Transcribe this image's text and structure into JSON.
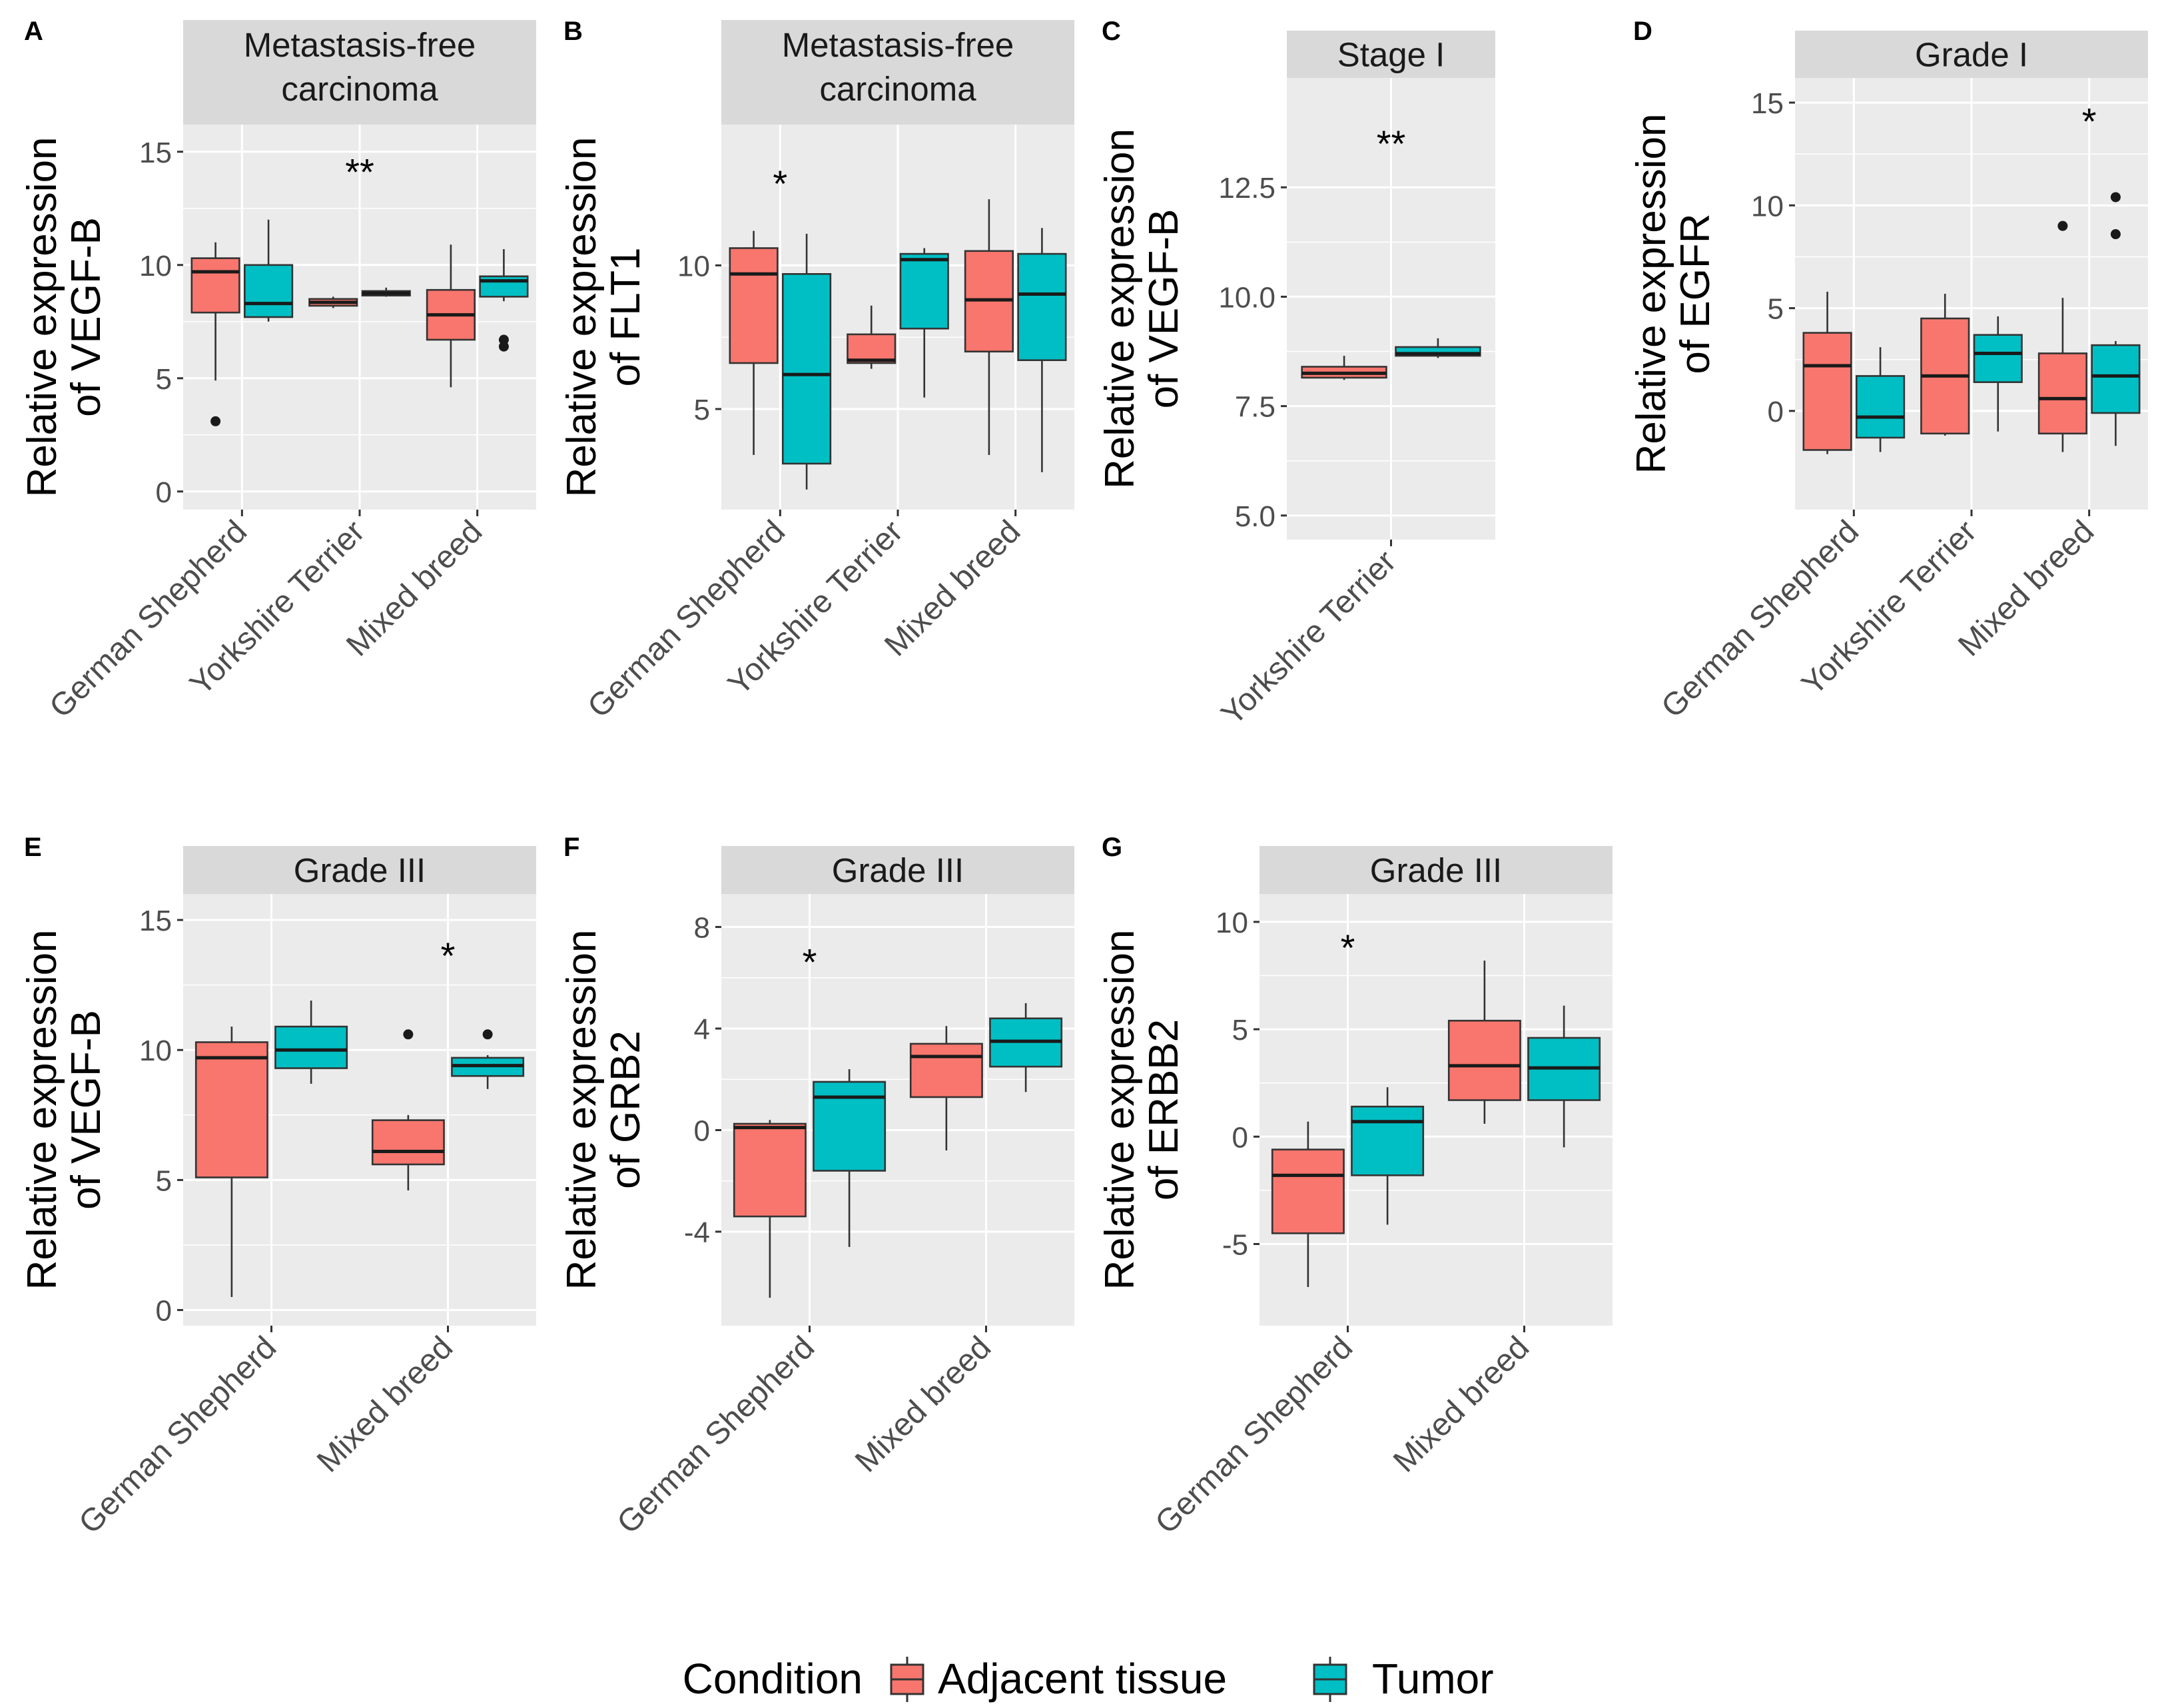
{
  "figure": {
    "legend": {
      "title": "Condition",
      "entries": [
        {
          "label": "Adjacent tissue",
          "color": "#F8766D"
        },
        {
          "label": "Tumor",
          "color": "#00BFC4"
        }
      ]
    },
    "colors": {
      "adjacent": "#F8766D",
      "tumor": "#00BFC4",
      "panel_bg": "#EBEBEB",
      "strip_bg": "#D9D9D9",
      "grid": "#FFFFFF",
      "tick_text": "#4D4D4D"
    }
  },
  "chart_data": [
    {
      "panel": "A",
      "type": "boxplot",
      "strip": [
        "Metastasis-free",
        "carcinoma"
      ],
      "ylabel": [
        "Relative expression",
        "of VEGF-B"
      ],
      "ylim": [
        -0.8,
        16.2
      ],
      "yticks": [
        0,
        5,
        10,
        15
      ],
      "yticklabels": [
        "0",
        "5",
        "10",
        "15"
      ],
      "categories": [
        "German Shepherd",
        "Yorkshire Terrier",
        "Mixed breed"
      ],
      "annotations": [
        {
          "category": "Yorkshire Terrier",
          "text": "**",
          "y": 14.3
        }
      ],
      "series": [
        {
          "name": "Adjacent tissue",
          "boxes": [
            {
              "category": "German Shepherd",
              "min": 4.9,
              "q1": 7.9,
              "median": 9.7,
              "q3": 10.3,
              "max": 11.0,
              "outliers": [
                3.1
              ]
            },
            {
              "category": "Yorkshire Terrier",
              "min": 8.1,
              "q1": 8.2,
              "median": 8.35,
              "q3": 8.5,
              "max": 8.6,
              "outliers": []
            },
            {
              "category": "Mixed breed",
              "min": 4.6,
              "q1": 6.7,
              "median": 7.8,
              "q3": 8.9,
              "max": 10.9,
              "outliers": []
            }
          ]
        },
        {
          "name": "Tumor",
          "boxes": [
            {
              "category": "German Shepherd",
              "min": 7.5,
              "q1": 7.7,
              "median": 8.3,
              "q3": 10.0,
              "max": 12.0,
              "outliers": []
            },
            {
              "category": "Yorkshire Terrier",
              "min": 8.6,
              "q1": 8.65,
              "median": 8.75,
              "q3": 8.85,
              "max": 9.0,
              "outliers": []
            },
            {
              "category": "Mixed breed",
              "min": 8.4,
              "q1": 8.6,
              "median": 9.3,
              "q3": 9.5,
              "max": 10.7,
              "outliers": [
                6.7,
                6.4
              ]
            }
          ]
        }
      ]
    },
    {
      "panel": "B",
      "type": "boxplot",
      "strip": [
        "Metastasis-free",
        "carcinoma"
      ],
      "ylabel": [
        "Relative expression",
        "of FLT1"
      ],
      "ylim": [
        1.5,
        14.9
      ],
      "yticks": [
        5,
        10
      ],
      "yticklabels": [
        "5",
        "10"
      ],
      "categories": [
        "German Shepherd",
        "Yorkshire Terrier",
        "Mixed breed"
      ],
      "annotations": [
        {
          "category": "German Shepherd",
          "text": "*",
          "y": 13.0
        }
      ],
      "series": [
        {
          "name": "Adjacent tissue",
          "boxes": [
            {
              "category": "German Shepherd",
              "min": 3.4,
              "q1": 6.6,
              "median": 9.7,
              "q3": 10.6,
              "max": 11.2,
              "outliers": []
            },
            {
              "category": "Yorkshire Terrier",
              "min": 6.4,
              "q1": 6.6,
              "median": 6.7,
              "q3": 7.6,
              "max": 8.6,
              "outliers": []
            },
            {
              "category": "Mixed breed",
              "min": 3.4,
              "q1": 7.0,
              "median": 8.8,
              "q3": 10.5,
              "max": 12.3,
              "outliers": []
            }
          ]
        },
        {
          "name": "Tumor",
          "boxes": [
            {
              "category": "German Shepherd",
              "min": 2.2,
              "q1": 3.1,
              "median": 6.2,
              "q3": 9.7,
              "max": 11.1,
              "outliers": []
            },
            {
              "category": "Yorkshire Terrier",
              "min": 5.4,
              "q1": 7.8,
              "median": 10.2,
              "q3": 10.4,
              "max": 10.6,
              "outliers": []
            },
            {
              "category": "Mixed breed",
              "min": 2.8,
              "q1": 6.7,
              "median": 9.0,
              "q3": 10.4,
              "max": 11.3,
              "outliers": []
            }
          ]
        }
      ]
    },
    {
      "panel": "C",
      "type": "boxplot",
      "strip": [
        "Stage I"
      ],
      "ylabel": [
        "Relative expression",
        "of VEGF-B"
      ],
      "ylim": [
        4.45,
        15.0
      ],
      "yticks": [
        5.0,
        7.5,
        10.0,
        12.5
      ],
      "yticklabels": [
        "5.0",
        "7.5",
        "10.0",
        "12.5"
      ],
      "categories": [
        "Yorkshire Terrier"
      ],
      "annotations": [
        {
          "category": "Yorkshire Terrier",
          "text": "**",
          "y": 13.6
        }
      ],
      "series": [
        {
          "name": "Adjacent tissue",
          "boxes": [
            {
              "category": "Yorkshire Terrier",
              "min": 8.1,
              "q1": 8.15,
              "median": 8.25,
              "q3": 8.4,
              "max": 8.65,
              "outliers": []
            }
          ]
        },
        {
          "name": "Tumor",
          "boxes": [
            {
              "category": "Yorkshire Terrier",
              "min": 8.6,
              "q1": 8.65,
              "median": 8.7,
              "q3": 8.85,
              "max": 9.05,
              "outliers": []
            }
          ]
        }
      ]
    },
    {
      "panel": "D",
      "type": "boxplot",
      "strip": [
        "Grade I"
      ],
      "ylabel": [
        "Relative expression",
        "of EGFR"
      ],
      "ylim": [
        -4.8,
        16.2
      ],
      "yticks": [
        0,
        5,
        10,
        15
      ],
      "yticklabels": [
        "0",
        "5",
        "10",
        "15"
      ],
      "categories": [
        "German Shepherd",
        "Yorkshire Terrier",
        "Mixed breed"
      ],
      "annotations": [
        {
          "category": "Mixed breed",
          "text": "*",
          "y": 14.3
        }
      ],
      "series": [
        {
          "name": "Adjacent tissue",
          "boxes": [
            {
              "category": "German Shepherd",
              "min": -2.1,
              "q1": -1.9,
              "median": 2.2,
              "q3": 3.8,
              "max": 5.8,
              "outliers": []
            },
            {
              "category": "Yorkshire Terrier",
              "min": -1.2,
              "q1": -1.1,
              "median": 1.7,
              "q3": 4.5,
              "max": 5.7,
              "outliers": []
            },
            {
              "category": "Mixed breed",
              "min": -2.0,
              "q1": -1.1,
              "median": 0.6,
              "q3": 2.8,
              "max": 5.5,
              "outliers": [
                9.0
              ]
            }
          ]
        },
        {
          "name": "Tumor",
          "boxes": [
            {
              "category": "German Shepherd",
              "min": -2.0,
              "q1": -1.3,
              "median": -0.3,
              "q3": 1.7,
              "max": 3.1,
              "outliers": []
            },
            {
              "category": "Yorkshire Terrier",
              "min": -1.0,
              "q1": 1.4,
              "median": 2.8,
              "q3": 3.7,
              "max": 4.6,
              "outliers": []
            },
            {
              "category": "Mixed breed",
              "min": -1.7,
              "q1": -0.1,
              "median": 1.7,
              "q3": 3.2,
              "max": 3.4,
              "outliers": [
                10.4,
                8.6
              ]
            }
          ]
        }
      ]
    },
    {
      "panel": "E",
      "type": "boxplot",
      "strip": [
        "Grade III"
      ],
      "ylabel": [
        "Relative expression",
        "of VEGF-B"
      ],
      "ylim": [
        -0.6,
        16.0
      ],
      "yticks": [
        0,
        5,
        10,
        15
      ],
      "yticklabels": [
        "0",
        "5",
        "10",
        "15"
      ],
      "categories": [
        "German Shepherd",
        "Mixed breed"
      ],
      "annotations": [
        {
          "category": "Mixed breed",
          "text": "*",
          "y": 13.8
        }
      ],
      "series": [
        {
          "name": "Adjacent tissue",
          "boxes": [
            {
              "category": "German Shepherd",
              "min": 0.5,
              "q1": 5.1,
              "median": 9.7,
              "q3": 10.3,
              "max": 10.9,
              "outliers": []
            },
            {
              "category": "Mixed breed",
              "min": 4.6,
              "q1": 5.6,
              "median": 6.1,
              "q3": 7.3,
              "max": 7.5,
              "outliers": [
                10.6
              ]
            }
          ]
        },
        {
          "name": "Tumor",
          "boxes": [
            {
              "category": "German Shepherd",
              "min": 8.7,
              "q1": 9.3,
              "median": 10.0,
              "q3": 10.9,
              "max": 11.9,
              "outliers": []
            },
            {
              "category": "Mixed breed",
              "min": 8.5,
              "q1": 9.0,
              "median": 9.4,
              "q3": 9.7,
              "max": 9.8,
              "outliers": [
                10.6
              ]
            }
          ]
        }
      ]
    },
    {
      "panel": "F",
      "type": "boxplot",
      "strip": [
        "Grade III"
      ],
      "ylabel": [
        "Relative expression",
        "of GRB2"
      ],
      "ylim": [
        -7.7,
        9.3
      ],
      "yticks": [
        -4,
        0,
        4,
        8
      ],
      "yticklabels": [
        "-4",
        "0",
        "4",
        "8"
      ],
      "categories": [
        "German Shepherd",
        "Mixed breed"
      ],
      "annotations": [
        {
          "category": "German Shepherd",
          "text": "*",
          "y": 6.8
        }
      ],
      "series": [
        {
          "name": "Adjacent tissue",
          "boxes": [
            {
              "category": "German Shepherd",
              "min": -6.6,
              "q1": -3.4,
              "median": 0.1,
              "q3": 0.25,
              "max": 0.4,
              "outliers": []
            },
            {
              "category": "Mixed breed",
              "min": -0.8,
              "q1": 1.3,
              "median": 2.9,
              "q3": 3.4,
              "max": 4.1,
              "outliers": []
            }
          ]
        },
        {
          "name": "Tumor",
          "boxes": [
            {
              "category": "German Shepherd",
              "min": -4.6,
              "q1": -1.6,
              "median": 1.3,
              "q3": 1.9,
              "max": 2.4,
              "outliers": []
            },
            {
              "category": "Mixed breed",
              "min": 1.5,
              "q1": 2.5,
              "median": 3.5,
              "q3": 4.4,
              "max": 5.0,
              "outliers": []
            }
          ]
        }
      ]
    },
    {
      "panel": "G",
      "type": "boxplot",
      "strip": [
        "Grade III"
      ],
      "ylabel": [
        "Relative expression",
        "of ERBB2"
      ],
      "ylim": [
        -8.8,
        11.3
      ],
      "yticks": [
        -5,
        0,
        5,
        10
      ],
      "yticklabels": [
        "-5",
        "0",
        "5",
        "10"
      ],
      "categories": [
        "German Shepherd",
        "Mixed breed"
      ],
      "annotations": [
        {
          "category": "German Shepherd",
          "text": "*",
          "y": 9.0
        }
      ],
      "series": [
        {
          "name": "Adjacent tissue",
          "boxes": [
            {
              "category": "German Shepherd",
              "min": -7.0,
              "q1": -4.5,
              "median": -1.8,
              "q3": -0.6,
              "max": 0.7,
              "outliers": []
            },
            {
              "category": "Mixed breed",
              "min": 0.6,
              "q1": 1.7,
              "median": 3.3,
              "q3": 5.4,
              "max": 8.2,
              "outliers": []
            }
          ]
        },
        {
          "name": "Tumor",
          "boxes": [
            {
              "category": "German Shepherd",
              "min": -4.1,
              "q1": -1.8,
              "median": 0.7,
              "q3": 1.4,
              "max": 2.3,
              "outliers": []
            },
            {
              "category": "Mixed breed",
              "min": -0.5,
              "q1": 1.7,
              "median": 3.2,
              "q3": 4.6,
              "max": 6.1,
              "outliers": []
            }
          ]
        }
      ]
    }
  ]
}
